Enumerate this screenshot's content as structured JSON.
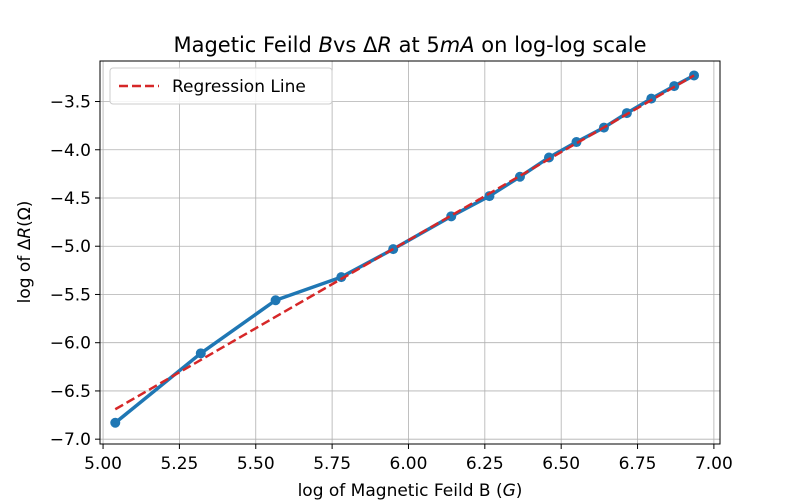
{
  "chart_data": {
    "type": "line",
    "title": {
      "part1": "Magetic Feild ",
      "var1": "B",
      "part2": "vs ",
      "delta": "Δ",
      "var2": "R",
      "part3": " at 5",
      "var3": "mA",
      "part4": " on log-log scale"
    },
    "xlabel": {
      "text": "log of Magnetic Feild B (",
      "unit": "G",
      "close": ")"
    },
    "ylabel": {
      "text": "log of Δ",
      "var": "R",
      "unit": "(Ω)"
    },
    "xlim": [
      4.99,
      7.02
    ],
    "ylim": [
      -7.05,
      -3.08
    ],
    "xticks": [
      5.0,
      5.25,
      5.5,
      5.75,
      6.0,
      6.25,
      6.5,
      6.75,
      7.0
    ],
    "xtick_labels": [
      "5.00",
      "5.25",
      "5.50",
      "5.75",
      "6.00",
      "6.25",
      "6.50",
      "6.75",
      "7.00"
    ],
    "yticks": [
      -7.0,
      -6.5,
      -6.0,
      -5.5,
      -5.0,
      -4.5,
      -4.0,
      -3.5
    ],
    "ytick_labels": [
      "−7.0",
      "−6.5",
      "−6.0",
      "−5.5",
      "−5.0",
      "−4.5",
      "−4.0",
      "−3.5"
    ],
    "grid": true,
    "legend": {
      "position": "top-left",
      "entries": [
        "Regression Line"
      ]
    },
    "series": [
      {
        "style": "solid",
        "color": "#1f77b4",
        "markers": true,
        "x": [
          5.04,
          5.32,
          5.565,
          5.78,
          5.95,
          6.14,
          6.265,
          6.365,
          6.46,
          6.55,
          6.64,
          6.715,
          6.795,
          6.87,
          6.935
        ],
        "y": [
          -6.83,
          -6.11,
          -5.56,
          -5.32,
          -5.03,
          -4.69,
          -4.48,
          -4.28,
          -4.08,
          -3.92,
          -3.77,
          -3.62,
          -3.47,
          -3.34,
          -3.23
        ]
      },
      {
        "name": "Regression Line",
        "style": "dashed",
        "color": "#d62728",
        "markers": false,
        "x": [
          5.04,
          6.935
        ],
        "y": [
          -6.69,
          -3.23
        ]
      }
    ]
  }
}
